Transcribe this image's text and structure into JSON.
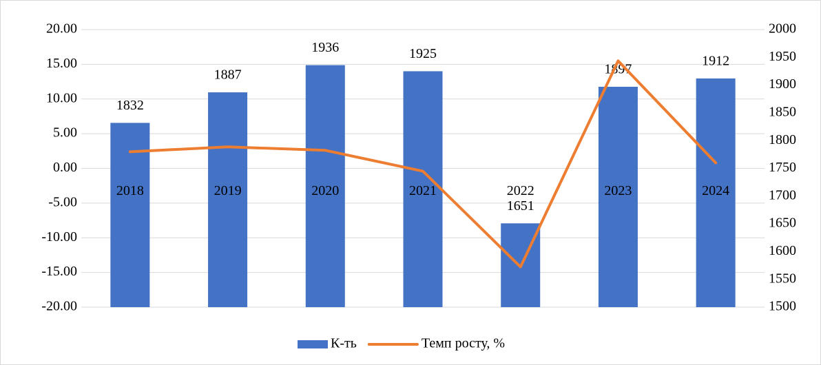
{
  "chart_data": {
    "type": "bar-line",
    "categories": [
      "2018",
      "2019",
      "2020",
      "2021",
      "2022",
      "2023",
      "2024"
    ],
    "series": [
      {
        "name": "К-ть",
        "type": "bar",
        "axis": "y2",
        "color": "#4472c4",
        "values": [
          1832,
          1887,
          1936,
          1925,
          1651,
          1897,
          1912
        ]
      },
      {
        "name": "Темп росту, %",
        "type": "line",
        "axis": "y",
        "color": "#ed7d31",
        "values": [
          2.4,
          3.1,
          2.6,
          -0.4,
          -14.2,
          15.5,
          0.8
        ]
      }
    ],
    "ylim": [
      -20,
      20
    ],
    "yticks": [
      {
        "value": -20,
        "label": "-20.00"
      },
      {
        "value": -15,
        "label": "-15.00"
      },
      {
        "value": -10,
        "label": "-10.00"
      },
      {
        "value": -5,
        "label": "-5.00"
      },
      {
        "value": 0,
        "label": "0.00"
      },
      {
        "value": 5,
        "label": "5.00"
      },
      {
        "value": 10,
        "label": "10.00"
      },
      {
        "value": 15,
        "label": "15.00"
      },
      {
        "value": 20,
        "label": "20.00"
      }
    ],
    "y2lim": [
      1500,
      2000
    ],
    "y2ticks": [
      1500,
      1550,
      1600,
      1650,
      1700,
      1750,
      1800,
      1850,
      1900,
      1950,
      2000
    ],
    "grid": true,
    "legend": "bottom"
  }
}
